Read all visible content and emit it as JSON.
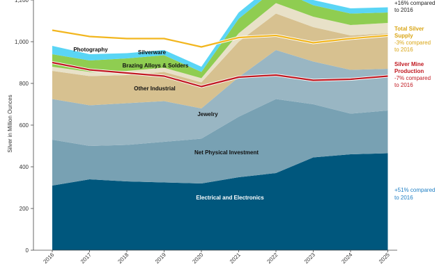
{
  "chart_data": {
    "type": "area",
    "title": "",
    "xlabel": "",
    "ylabel": "Silver in Million Ounces",
    "ylim": [
      0,
      1200
    ],
    "yticks": [
      0,
      200,
      400,
      600,
      800,
      1000,
      1200
    ],
    "ytick_labels": [
      "0",
      "200",
      "400",
      "600",
      "800",
      "1,000",
      "1,200"
    ],
    "grid": false,
    "categories": [
      "2016",
      "2017",
      "2018",
      "2019",
      "2020",
      "2021",
      "2022",
      "2023",
      "2024",
      "2025"
    ],
    "series": [
      {
        "name": "Electrical and Electronics",
        "color": "#00577d",
        "label_color": "#ffffff",
        "values": [
          310,
          340,
          330,
          325,
          320,
          350,
          370,
          445,
          460,
          465
        ]
      },
      {
        "name": "Net Physical Investment",
        "color": "#78a1b3",
        "values": [
          220,
          160,
          175,
          195,
          215,
          290,
          355,
          255,
          195,
          205
        ]
      },
      {
        "name": "Jewelry",
        "color": "#99b6c3",
        "values": [
          195,
          195,
          200,
          195,
          145,
          190,
          235,
          205,
          210,
          200
        ]
      },
      {
        "name": "Other Industrial",
        "color": "#d7c190",
        "values": [
          135,
          140,
          135,
          140,
          125,
          170,
          175,
          165,
          165,
          170
        ]
      },
      {
        "name": "Brazing Alloys & Solders",
        "color": "#e8e1c8",
        "values": [
          20,
          20,
          20,
          20,
          20,
          40,
          50,
          50,
          50,
          50
        ]
      },
      {
        "name": "Silverware",
        "color": "#8fcd51",
        "values": [
          60,
          55,
          60,
          60,
          30,
          70,
          70,
          55,
          55,
          50
        ]
      },
      {
        "name": "Photography",
        "color": "#5ad5f5",
        "values": [
          40,
          30,
          25,
          25,
          25,
          30,
          30,
          25,
          25,
          25
        ]
      }
    ],
    "lines": [
      {
        "name": "Total Silver Supply",
        "color": "#f2b61e",
        "values": [
          1055,
          1025,
          1015,
          1015,
          975,
          1020,
          1030,
          995,
          1015,
          1030
        ]
      },
      {
        "name": "Silver Mine Production",
        "color": "#c0171f",
        "values": [
          900,
          865,
          850,
          835,
          785,
          830,
          840,
          815,
          820,
          835
        ]
      }
    ],
    "annotations": [
      {
        "text": "+16% compared to 2016",
        "color": "#222222"
      },
      {
        "title": "Total Silver Supply",
        "text": "-3% compared to 2016",
        "color": "#d9a514"
      },
      {
        "title": "Silver Mine Production",
        "text": "-7% compared to 2016",
        "color": "#c0171f"
      },
      {
        "text": "+51% compared to 2016",
        "color": "#1f7fc4"
      }
    ]
  }
}
